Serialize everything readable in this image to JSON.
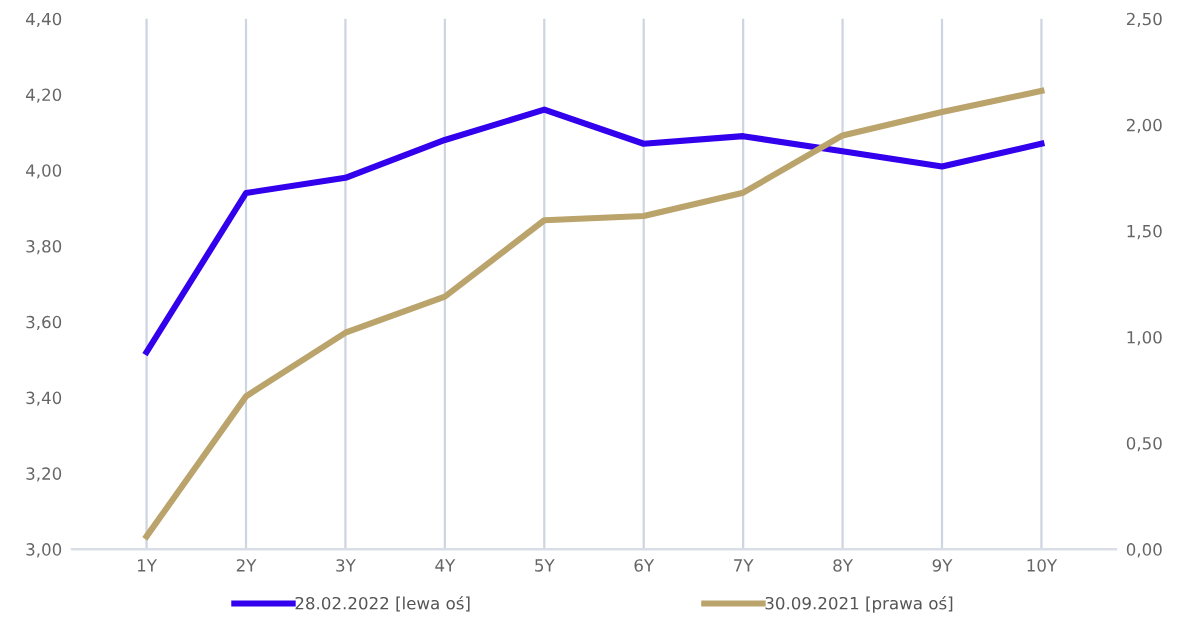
{
  "chart_data": {
    "type": "line",
    "categories": [
      "1Y",
      "2Y",
      "3Y",
      "4Y",
      "5Y",
      "6Y",
      "7Y",
      "8Y",
      "9Y",
      "10Y"
    ],
    "series": [
      {
        "name": "28.02.2022 [lewa oś]",
        "color": "#3300ee",
        "values": [
          3.52,
          3.94,
          3.98,
          4.08,
          4.16,
          4.07,
          4.09,
          4.05,
          4.01,
          4.07
        ]
      },
      {
        "name": "30.09.2021 [prawa oś]",
        "color": "#bba46c",
        "axis": "y2",
        "values": [
          0.06,
          0.72,
          1.02,
          1.19,
          1.55,
          1.57,
          1.68,
          1.95,
          2.06,
          2.16
        ]
      }
    ],
    "ylim": [
      3.0,
      4.4
    ],
    "yticks": [
      {
        "value": 3.0,
        "label": "3,00"
      },
      {
        "value": 3.2,
        "label": "3,20"
      },
      {
        "value": 3.4,
        "label": "3,40"
      },
      {
        "value": 3.6,
        "label": "3,60"
      },
      {
        "value": 3.8,
        "label": "3,80"
      },
      {
        "value": 4.0,
        "label": "4,00"
      },
      {
        "value": 4.2,
        "label": "4,20"
      },
      {
        "value": 4.4,
        "label": "4,40"
      }
    ],
    "y2lim": [
      0,
      2.5
    ],
    "y2ticks": [
      {
        "value": 0,
        "label": "0,00"
      },
      {
        "value": 0.5,
        "label": "0,50"
      },
      {
        "value": 1.0,
        "label": "1,00"
      },
      {
        "value": 1.5,
        "label": "1,50"
      },
      {
        "value": 2.0,
        "label": "2,00"
      },
      {
        "value": 2.5,
        "label": "2,50"
      }
    ],
    "grid": "x",
    "legend": "bottom",
    "marker": "none",
    "line_style": "solid"
  }
}
